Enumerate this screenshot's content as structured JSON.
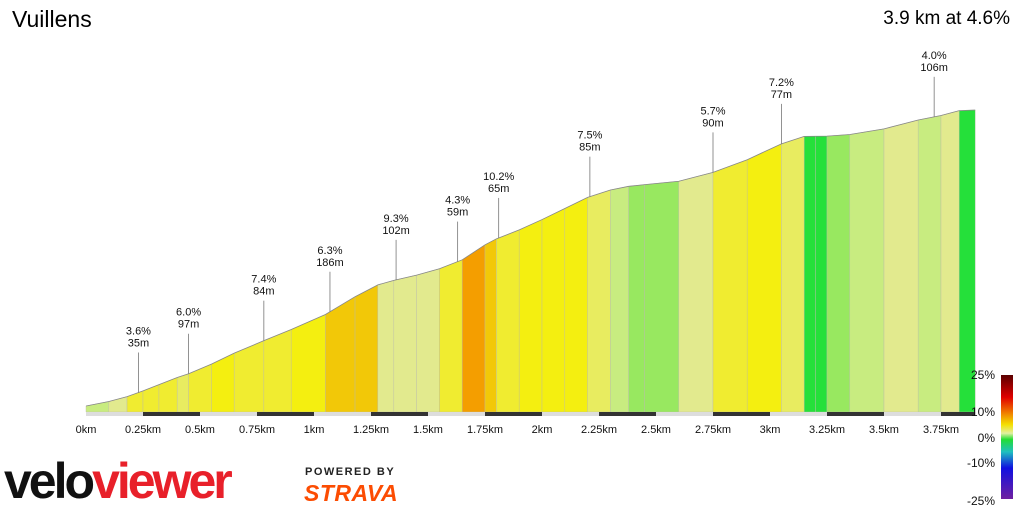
{
  "segment": {
    "name": "Vuillens",
    "stats": "3.9 km at 4.6%"
  },
  "branding": {
    "logo_text": "veloviewer",
    "powered_by": "POWERED BY",
    "strava": "STRAVA"
  },
  "chart_data": {
    "type": "area",
    "title": "Vuillens",
    "subtitle": "3.9 km at 4.6%",
    "xlabel": "",
    "ylabel": "",
    "xlim": [
      0,
      3.9
    ],
    "x_ticks": [
      "0km",
      "0.25km",
      "0.5km",
      "0.75km",
      "1km",
      "1.25km",
      "1.5km",
      "1.75km",
      "2km",
      "2.25km",
      "2.5km",
      "2.75km",
      "3km",
      "3.25km",
      "3.5km",
      "3.75km"
    ],
    "x_tick_values": [
      0,
      0.25,
      0.5,
      0.75,
      1,
      1.25,
      1.5,
      1.75,
      2,
      2.25,
      2.5,
      2.75,
      3,
      3.25,
      3.5,
      3.75
    ],
    "elevation_profile": {
      "x_km": [
        0,
        0.1,
        0.18,
        0.25,
        0.32,
        0.4,
        0.45,
        0.55,
        0.65,
        0.78,
        0.9,
        1.05,
        1.18,
        1.28,
        1.35,
        1.45,
        1.55,
        1.65,
        1.75,
        1.8,
        1.9,
        2.0,
        2.1,
        2.2,
        2.3,
        2.38,
        2.45,
        2.6,
        2.75,
        2.9,
        3.05,
        3.15,
        3.2,
        3.25,
        3.35,
        3.5,
        3.65,
        3.75,
        3.83,
        3.9
      ],
      "grade_pct": [
        2,
        3,
        4,
        5.5,
        6,
        6,
        5,
        6.5,
        7.4,
        6.5,
        6.3,
        6.8,
        9.3,
        8,
        4.3,
        3.5,
        4.3,
        6,
        10.2,
        8,
        6,
        7,
        7.5,
        7.5,
        5,
        3,
        1.5,
        1.5,
        4,
        5.7,
        7.2,
        5,
        0,
        -0.5,
        1,
        2.5,
        4,
        3,
        4,
        0.5
      ]
    },
    "callouts": [
      {
        "x_km": 0.23,
        "grade": "3.6%",
        "length": "35m"
      },
      {
        "x_km": 0.45,
        "grade": "6.0%",
        "length": "97m"
      },
      {
        "x_km": 0.78,
        "grade": "7.4%",
        "length": "84m"
      },
      {
        "x_km": 1.07,
        "grade": "6.3%",
        "length": "186m"
      },
      {
        "x_km": 1.36,
        "grade": "9.3%",
        "length": "102m"
      },
      {
        "x_km": 1.63,
        "grade": "4.3%",
        "length": "59m"
      },
      {
        "x_km": 1.81,
        "grade": "10.2%",
        "length": "65m"
      },
      {
        "x_km": 2.21,
        "grade": "7.5%",
        "length": "85m"
      },
      {
        "x_km": 2.75,
        "grade": "5.7%",
        "length": "90m"
      },
      {
        "x_km": 3.05,
        "grade": "7.2%",
        "length": "77m"
      },
      {
        "x_km": 3.72,
        "grade": "4.0%",
        "length": "106m"
      }
    ],
    "gradient_legend": {
      "labels": [
        "25%",
        "10%",
        "0%",
        "-10%",
        "-25%"
      ],
      "colors": [
        "#5a0000",
        "#e00000",
        "#f07800",
        "#f4e000",
        "#e0f0a0",
        "#22dd33",
        "#20c0c0",
        "#1010e0",
        "#7020a0"
      ]
    },
    "grid": false
  }
}
